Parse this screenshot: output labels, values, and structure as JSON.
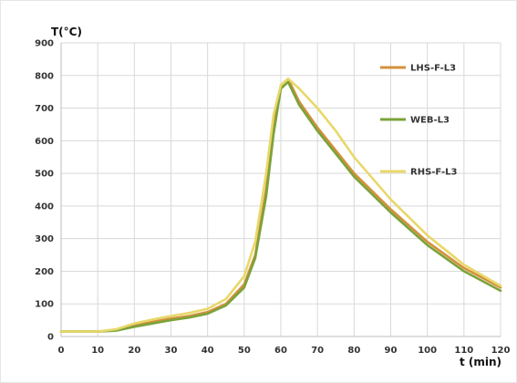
{
  "chart_data": {
    "type": "line",
    "title": "",
    "xlabel": "t (min)",
    "ylabel": "T(°C)",
    "xlim": [
      0,
      120
    ],
    "ylim": [
      0,
      900
    ],
    "xticks": [
      0,
      10,
      20,
      30,
      40,
      50,
      60,
      70,
      80,
      90,
      100,
      110,
      120
    ],
    "yticks": [
      0,
      100,
      200,
      300,
      400,
      500,
      600,
      700,
      800,
      900
    ],
    "grid": true,
    "legend_position": "right",
    "series": [
      {
        "name": "LHS-F-L3",
        "color": "#d4903c",
        "x": [
          0,
          10,
          15,
          20,
          25,
          30,
          35,
          40,
          45,
          50,
          53,
          56,
          58,
          60,
          62,
          65,
          70,
          75,
          80,
          90,
          100,
          110,
          120
        ],
        "y": [
          15,
          15,
          20,
          35,
          45,
          55,
          63,
          75,
          100,
          160,
          250,
          450,
          650,
          770,
          790,
          720,
          640,
          570,
          500,
          390,
          290,
          210,
          150
        ]
      },
      {
        "name": "WEB-L3",
        "color": "#7aa33a",
        "x": [
          0,
          10,
          15,
          20,
          25,
          30,
          35,
          40,
          45,
          50,
          53,
          56,
          58,
          60,
          62,
          65,
          70,
          75,
          80,
          90,
          100,
          110,
          120
        ],
        "y": [
          15,
          15,
          18,
          30,
          40,
          50,
          58,
          70,
          95,
          150,
          240,
          430,
          620,
          760,
          780,
          710,
          630,
          560,
          490,
          380,
          280,
          200,
          140
        ]
      },
      {
        "name": "RHS-F-L3",
        "color": "#e8d86a",
        "x": [
          0,
          10,
          15,
          20,
          25,
          30,
          35,
          40,
          45,
          50,
          53,
          56,
          58,
          60,
          62,
          65,
          70,
          75,
          80,
          90,
          100,
          110,
          120
        ],
        "y": [
          15,
          15,
          22,
          40,
          52,
          63,
          72,
          85,
          115,
          185,
          290,
          500,
          680,
          770,
          790,
          760,
          700,
          630,
          550,
          420,
          310,
          220,
          155
        ]
      }
    ]
  }
}
